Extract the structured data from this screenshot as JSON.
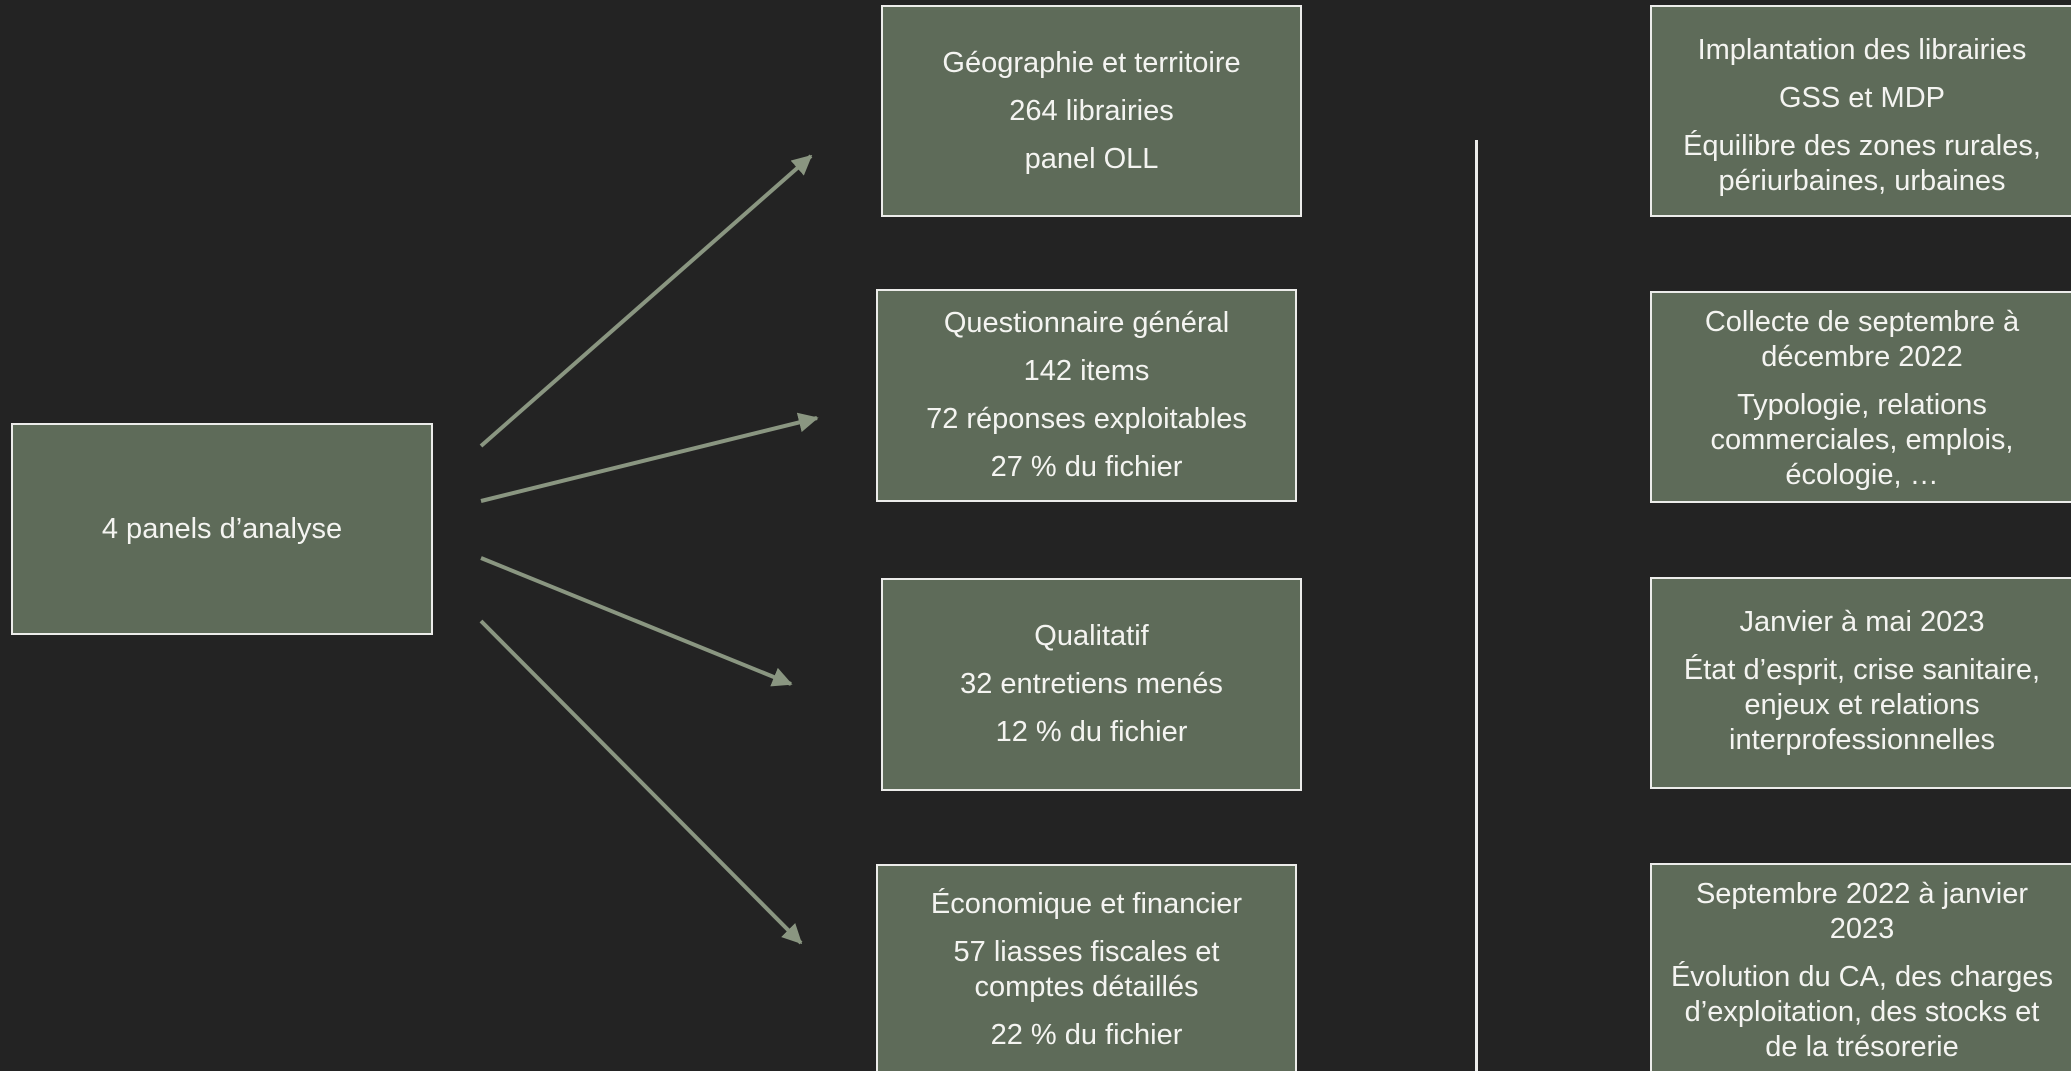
{
  "source": {
    "label": "4 panels d’analyse"
  },
  "panels": [
    {
      "lines": [
        "Géographie et territoire",
        "264 librairies",
        "panel OLL"
      ]
    },
    {
      "lines": [
        "Questionnaire général",
        "142 items",
        "72 réponses exploitables",
        "27 % du fichier"
      ]
    },
    {
      "lines": [
        "Qualitatif",
        "32 entretiens menés",
        "12 % du fichier"
      ]
    },
    {
      "lines": [
        "Économique et financier",
        "57 liasses fiscales et comptes détaillés",
        "22 % du fichier"
      ]
    }
  ],
  "details": [
    {
      "lines": [
        "Implantation des librairies",
        "GSS et MDP",
        "Équilibre des zones rurales, périurbaines, urbaines"
      ]
    },
    {
      "lines": [
        "Collecte de septembre à décembre 2022",
        "Typologie, relations commerciales, emplois, écologie, …"
      ]
    },
    {
      "lines": [
        "Janvier à mai 2023",
        "État d’esprit, crise sanitaire, enjeux et relations interprofessionnelles"
      ]
    },
    {
      "lines": [
        "Septembre 2022 à janvier 2023",
        "Évolution du CA, des charges d’exploitation, des stocks et de la trésorerie"
      ]
    }
  ],
  "colors": {
    "background": "#232323",
    "box_fill": "#5e6b59",
    "box_border": "#ececea",
    "arrow": "#8a9681",
    "text": "#f4f4f1"
  }
}
